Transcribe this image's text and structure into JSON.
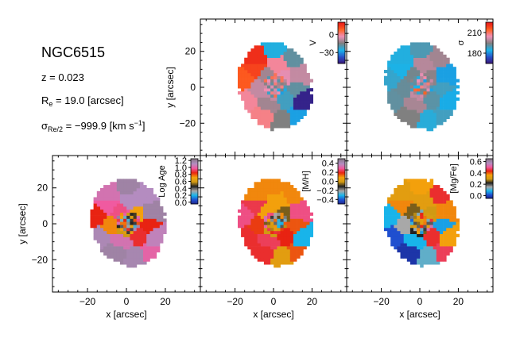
{
  "galaxy": "NGC6515",
  "info": {
    "redshift": "z = 0.023",
    "re_symbol": "R",
    "re_sub": "e",
    "re_value": " = 19.0 [arcsec]",
    "sigma_symbol": "σ",
    "sigma_sub": "Re/2",
    "sigma_value": " = −999.9 [km s",
    "sigma_sup": "−1",
    "sigma_close": "]"
  },
  "chart_data": [
    {
      "type": "heatmap",
      "panel": "velocity",
      "xlabel": "",
      "ylabel": "y [arcsec]",
      "xlim": [
        -38,
        38
      ],
      "ylim": [
        -38,
        38
      ],
      "yticks": [
        -20,
        0,
        20
      ],
      "xticks": [
        -20,
        0,
        20
      ],
      "show_xticklabels": false,
      "show_yticklabels": true,
      "colorbar": {
        "label": "V",
        "ticks": [
          0,
          -30
        ],
        "range": [
          -48,
          20
        ]
      },
      "cmap": "velocity"
    },
    {
      "type": "heatmap",
      "panel": "dispersion",
      "xlabel": "",
      "ylabel": "",
      "xlim": [
        -38,
        38
      ],
      "ylim": [
        -38,
        38
      ],
      "xticks": [
        -20,
        0,
        20
      ],
      "yticks": [
        -20,
        0,
        20
      ],
      "show_xticklabels": false,
      "show_yticklabels": false,
      "colorbar": {
        "label": "σ",
        "ticks": [
          210,
          180
        ],
        "range": [
          165,
          225
        ]
      },
      "cmap": "velocity"
    },
    {
      "type": "heatmap",
      "panel": "log_age",
      "xlabel": "x [arcsec]",
      "ylabel": "y [arcsec]",
      "xlim": [
        -38,
        38
      ],
      "ylim": [
        -38,
        38
      ],
      "xticks": [
        -20,
        0,
        20
      ],
      "yticks": [
        -20,
        0,
        20
      ],
      "show_xticklabels": true,
      "show_yticklabels": true,
      "colorbar": {
        "label": "Log Age",
        "ticks": [
          1.2,
          1.0,
          0.8,
          0.6,
          0.4,
          0.2,
          0.0
        ],
        "range": [
          -0.05,
          1.25
        ]
      },
      "cmap": "sauron"
    },
    {
      "type": "heatmap",
      "panel": "metallicity",
      "xlabel": "x [arcsec]",
      "ylabel": "",
      "xlim": [
        -38,
        38
      ],
      "ylim": [
        -38,
        38
      ],
      "xticks": [
        -20,
        0,
        20
      ],
      "yticks": [
        -20,
        0,
        20
      ],
      "show_xticklabels": true,
      "show_yticklabels": false,
      "colorbar": {
        "label": "[M/H]",
        "ticks": [
          0.4,
          0.2,
          0.0,
          -0.2,
          -0.4
        ],
        "range": [
          -0.5,
          0.5
        ]
      },
      "cmap": "sauron"
    },
    {
      "type": "heatmap",
      "panel": "alpha",
      "xlabel": "x [arcsec]",
      "ylabel": "",
      "xlim": [
        -38,
        38
      ],
      "ylim": [
        -38,
        38
      ],
      "xticks": [
        -20,
        0,
        20
      ],
      "yticks": [
        -20,
        0,
        20
      ],
      "show_xticklabels": true,
      "show_yticklabels": false,
      "colorbar": {
        "label": "[Mg/Fe]",
        "ticks": [
          0.6,
          0.4,
          0.2,
          0.0
        ],
        "range": [
          -0.05,
          0.65
        ]
      },
      "cmap": "sauron"
    }
  ],
  "colors": {
    "sauron_cmap": [
      "#1a1a80",
      "#1f4fcf",
      "#18b4ea",
      "#a8a8a8",
      "#222222",
      "#d19a13",
      "#f3a00c",
      "#e82312",
      "#f05aa0",
      "#b48cc0",
      "#8a7a8a"
    ],
    "velocity_cmap": [
      "#3a1070",
      "#2850c8",
      "#18b4ea",
      "#808080",
      "#f090b8",
      "#ff6020",
      "#e81818"
    ]
  }
}
